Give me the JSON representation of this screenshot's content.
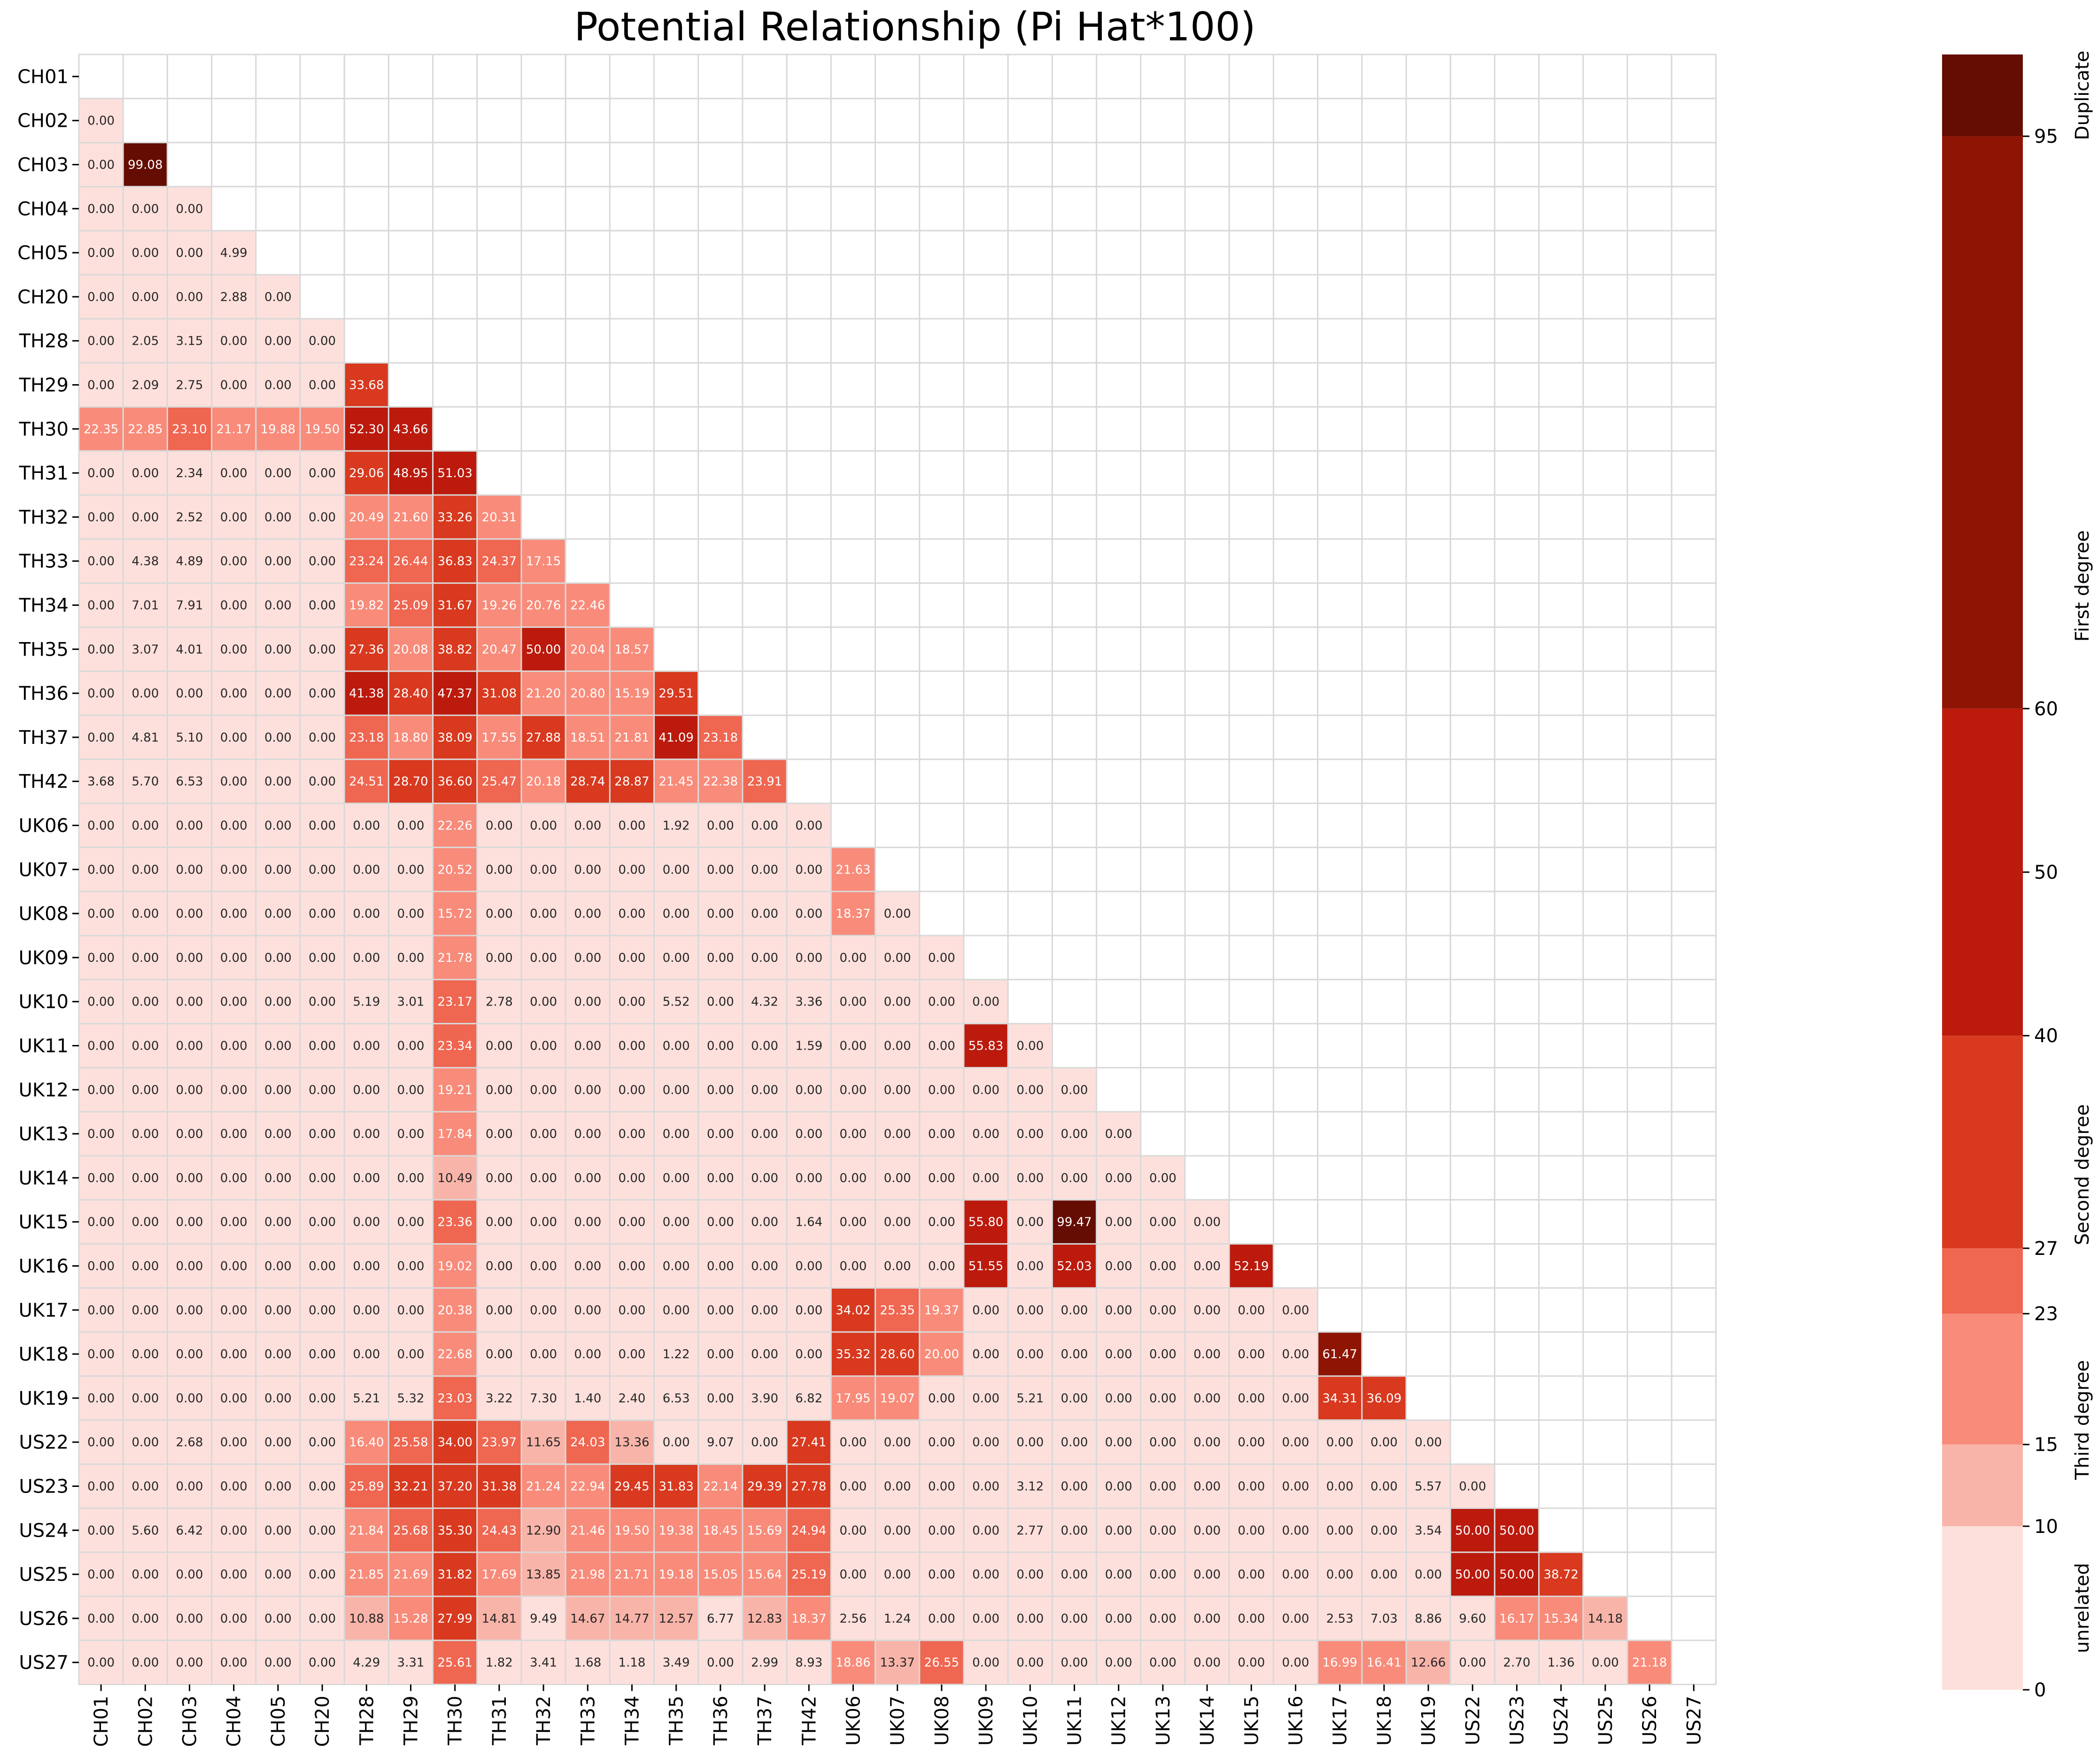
{
  "chart_data": {
    "type": "heatmap",
    "title": "Potential Relationship (Pi Hat*100)",
    "xlabel": "",
    "ylabel": "",
    "samples": [
      "CH01",
      "CH02",
      "CH03",
      "CH04",
      "CH05",
      "CH20",
      "TH28",
      "TH29",
      "TH30",
      "TH31",
      "TH32",
      "TH33",
      "TH34",
      "TH35",
      "TH36",
      "TH37",
      "TH42",
      "UK06",
      "UK07",
      "UK08",
      "UK09",
      "UK10",
      "UK11",
      "UK12",
      "UK13",
      "UK14",
      "UK15",
      "UK16",
      "UK17",
      "UK18",
      "UK19",
      "US22",
      "US23",
      "US24",
      "US25",
      "US26",
      "US27"
    ],
    "lower_triangle": [
      [],
      [
        0.0
      ],
      [
        0.0,
        99.08
      ],
      [
        0.0,
        0.0,
        0.0
      ],
      [
        0.0,
        0.0,
        0.0,
        4.99
      ],
      [
        0.0,
        0.0,
        0.0,
        2.88,
        0.0
      ],
      [
        0.0,
        2.05,
        3.15,
        0.0,
        0.0,
        0.0
      ],
      [
        0.0,
        2.09,
        2.75,
        0.0,
        0.0,
        0.0,
        33.68
      ],
      [
        22.35,
        22.85,
        23.1,
        21.17,
        19.88,
        19.5,
        52.3,
        43.66
      ],
      [
        0.0,
        0.0,
        2.34,
        0.0,
        0.0,
        0.0,
        29.06,
        48.95,
        51.03
      ],
      [
        0.0,
        0.0,
        2.52,
        0.0,
        0.0,
        0.0,
        20.49,
        21.6,
        33.26,
        20.31
      ],
      [
        0.0,
        4.38,
        4.89,
        0.0,
        0.0,
        0.0,
        23.24,
        26.44,
        36.83,
        24.37,
        17.15
      ],
      [
        0.0,
        7.01,
        7.91,
        0.0,
        0.0,
        0.0,
        19.82,
        25.09,
        31.67,
        19.26,
        20.76,
        22.46
      ],
      [
        0.0,
        3.07,
        4.01,
        0.0,
        0.0,
        0.0,
        27.36,
        20.08,
        38.82,
        20.47,
        50.0,
        20.04,
        18.57
      ],
      [
        0.0,
        0.0,
        0.0,
        0.0,
        0.0,
        0.0,
        41.38,
        28.4,
        47.37,
        31.08,
        21.2,
        20.8,
        15.19,
        29.51
      ],
      [
        0.0,
        4.81,
        5.1,
        0.0,
        0.0,
        0.0,
        23.18,
        18.8,
        38.09,
        17.55,
        27.88,
        18.51,
        21.81,
        41.09,
        23.18
      ],
      [
        3.68,
        5.7,
        6.53,
        0.0,
        0.0,
        0.0,
        24.51,
        28.7,
        36.6,
        25.47,
        20.18,
        28.74,
        28.87,
        21.45,
        22.38,
        23.91
      ],
      [
        0.0,
        0.0,
        0.0,
        0.0,
        0.0,
        0.0,
        0.0,
        0.0,
        22.26,
        0.0,
        0.0,
        0.0,
        0.0,
        1.92,
        0.0,
        0.0,
        0.0
      ],
      [
        0.0,
        0.0,
        0.0,
        0.0,
        0.0,
        0.0,
        0.0,
        0.0,
        20.52,
        0.0,
        0.0,
        0.0,
        0.0,
        0.0,
        0.0,
        0.0,
        0.0,
        21.63
      ],
      [
        0.0,
        0.0,
        0.0,
        0.0,
        0.0,
        0.0,
        0.0,
        0.0,
        15.72,
        0.0,
        0.0,
        0.0,
        0.0,
        0.0,
        0.0,
        0.0,
        0.0,
        18.37,
        0.0
      ],
      [
        0.0,
        0.0,
        0.0,
        0.0,
        0.0,
        0.0,
        0.0,
        0.0,
        21.78,
        0.0,
        0.0,
        0.0,
        0.0,
        0.0,
        0.0,
        0.0,
        0.0,
        0.0,
        0.0,
        0.0
      ],
      [
        0.0,
        0.0,
        0.0,
        0.0,
        0.0,
        0.0,
        5.19,
        3.01,
        23.17,
        2.78,
        0.0,
        0.0,
        0.0,
        5.52,
        0.0,
        4.32,
        3.36,
        0.0,
        0.0,
        0.0,
        0.0
      ],
      [
        0.0,
        0.0,
        0.0,
        0.0,
        0.0,
        0.0,
        0.0,
        0.0,
        23.34,
        0.0,
        0.0,
        0.0,
        0.0,
        0.0,
        0.0,
        0.0,
        1.59,
        0.0,
        0.0,
        0.0,
        55.83,
        0.0
      ],
      [
        0.0,
        0.0,
        0.0,
        0.0,
        0.0,
        0.0,
        0.0,
        0.0,
        19.21,
        0.0,
        0.0,
        0.0,
        0.0,
        0.0,
        0.0,
        0.0,
        0.0,
        0.0,
        0.0,
        0.0,
        0.0,
        0.0,
        0.0
      ],
      [
        0.0,
        0.0,
        0.0,
        0.0,
        0.0,
        0.0,
        0.0,
        0.0,
        17.84,
        0.0,
        0.0,
        0.0,
        0.0,
        0.0,
        0.0,
        0.0,
        0.0,
        0.0,
        0.0,
        0.0,
        0.0,
        0.0,
        0.0,
        0.0
      ],
      [
        0.0,
        0.0,
        0.0,
        0.0,
        0.0,
        0.0,
        0.0,
        0.0,
        10.49,
        0.0,
        0.0,
        0.0,
        0.0,
        0.0,
        0.0,
        0.0,
        0.0,
        0.0,
        0.0,
        0.0,
        0.0,
        0.0,
        0.0,
        0.0,
        0.0
      ],
      [
        0.0,
        0.0,
        0.0,
        0.0,
        0.0,
        0.0,
        0.0,
        0.0,
        23.36,
        0.0,
        0.0,
        0.0,
        0.0,
        0.0,
        0.0,
        0.0,
        1.64,
        0.0,
        0.0,
        0.0,
        55.8,
        0.0,
        99.47,
        0.0,
        0.0,
        0.0
      ],
      [
        0.0,
        0.0,
        0.0,
        0.0,
        0.0,
        0.0,
        0.0,
        0.0,
        19.02,
        0.0,
        0.0,
        0.0,
        0.0,
        0.0,
        0.0,
        0.0,
        0.0,
        0.0,
        0.0,
        0.0,
        51.55,
        0.0,
        52.03,
        0.0,
        0.0,
        0.0,
        52.19
      ],
      [
        0.0,
        0.0,
        0.0,
        0.0,
        0.0,
        0.0,
        0.0,
        0.0,
        20.38,
        0.0,
        0.0,
        0.0,
        0.0,
        0.0,
        0.0,
        0.0,
        0.0,
        34.02,
        25.35,
        19.37,
        0.0,
        0.0,
        0.0,
        0.0,
        0.0,
        0.0,
        0.0,
        0.0
      ],
      [
        0.0,
        0.0,
        0.0,
        0.0,
        0.0,
        0.0,
        0.0,
        0.0,
        22.68,
        0.0,
        0.0,
        0.0,
        0.0,
        1.22,
        0.0,
        0.0,
        0.0,
        35.32,
        28.6,
        20.0,
        0.0,
        0.0,
        0.0,
        0.0,
        0.0,
        0.0,
        0.0,
        0.0,
        61.47
      ],
      [
        0.0,
        0.0,
        0.0,
        0.0,
        0.0,
        0.0,
        5.21,
        5.32,
        23.03,
        3.22,
        7.3,
        1.4,
        2.4,
        6.53,
        0.0,
        3.9,
        6.82,
        17.95,
        19.07,
        0.0,
        0.0,
        5.21,
        0.0,
        0.0,
        0.0,
        0.0,
        0.0,
        0.0,
        34.31,
        36.09
      ],
      [
        0.0,
        0.0,
        2.68,
        0.0,
        0.0,
        0.0,
        16.4,
        25.58,
        34.0,
        23.97,
        11.65,
        24.03,
        13.36,
        0.0,
        9.07,
        0.0,
        27.41,
        0.0,
        0.0,
        0.0,
        0.0,
        0.0,
        0.0,
        0.0,
        0.0,
        0.0,
        0.0,
        0.0,
        0.0,
        0.0,
        0.0
      ],
      [
        0.0,
        0.0,
        0.0,
        0.0,
        0.0,
        0.0,
        25.89,
        32.21,
        37.2,
        31.38,
        21.24,
        22.94,
        29.45,
        31.83,
        22.14,
        29.39,
        27.78,
        0.0,
        0.0,
        0.0,
        0.0,
        3.12,
        0.0,
        0.0,
        0.0,
        0.0,
        0.0,
        0.0,
        0.0,
        0.0,
        5.57,
        0.0
      ],
      [
        0.0,
        5.6,
        6.42,
        0.0,
        0.0,
        0.0,
        21.84,
        25.68,
        35.3,
        24.43,
        12.9,
        21.46,
        19.5,
        19.38,
        18.45,
        15.69,
        24.94,
        0.0,
        0.0,
        0.0,
        0.0,
        2.77,
        0.0,
        0.0,
        0.0,
        0.0,
        0.0,
        0.0,
        0.0,
        0.0,
        3.54,
        50.0,
        50.0
      ],
      [
        0.0,
        0.0,
        0.0,
        0.0,
        0.0,
        0.0,
        21.85,
        21.69,
        31.82,
        17.69,
        13.85,
        21.98,
        21.71,
        19.18,
        15.05,
        15.64,
        25.19,
        0.0,
        0.0,
        0.0,
        0.0,
        0.0,
        0.0,
        0.0,
        0.0,
        0.0,
        0.0,
        0.0,
        0.0,
        0.0,
        0.0,
        50.0,
        50.0,
        38.72
      ],
      [
        0.0,
        0.0,
        0.0,
        0.0,
        0.0,
        0.0,
        10.88,
        15.28,
        27.99,
        14.81,
        9.49,
        14.67,
        14.77,
        12.57,
        6.77,
        12.83,
        18.37,
        2.56,
        1.24,
        0.0,
        0.0,
        0.0,
        0.0,
        0.0,
        0.0,
        0.0,
        0.0,
        0.0,
        2.53,
        7.03,
        8.86,
        9.6,
        16.17,
        15.34,
        14.18
      ],
      [
        0.0,
        0.0,
        0.0,
        0.0,
        0.0,
        0.0,
        4.29,
        3.31,
        25.61,
        1.82,
        3.41,
        1.68,
        1.18,
        3.49,
        0.0,
        2.99,
        8.93,
        18.86,
        13.37,
        26.55,
        0.0,
        0.0,
        0.0,
        0.0,
        0.0,
        0.0,
        0.0,
        0.0,
        16.99,
        16.41,
        12.66,
        0.0,
        2.7,
        1.36,
        0.0,
        21.18
      ]
    ],
    "value_format": "2 decimals",
    "colorbar": {
      "range": [
        0,
        100
      ],
      "ticks": [
        0,
        10,
        15,
        23,
        27,
        40,
        50,
        60,
        95
      ],
      "bins": [
        {
          "from": 0,
          "to": 10,
          "color": "#fde0dc"
        },
        {
          "from": 10,
          "to": 15,
          "color": "#f9b4a9"
        },
        {
          "from": 15,
          "to": 23,
          "color": "#f88b7a"
        },
        {
          "from": 23,
          "to": 27,
          "color": "#ef6651"
        },
        {
          "from": 27,
          "to": 40,
          "color": "#d8391f"
        },
        {
          "from": 40,
          "to": 60,
          "color": "#bb1a0d"
        },
        {
          "from": 60,
          "to": 95,
          "color": "#8e1404"
        },
        {
          "from": 95,
          "to": 100,
          "color": "#650d02"
        }
      ],
      "category_labels": [
        {
          "label": "unrelated",
          "from": 0,
          "to": 10
        },
        {
          "label": "Third degree",
          "from": 10,
          "to": 23
        },
        {
          "label": "Second degree",
          "from": 23,
          "to": 40
        },
        {
          "label": "First degree",
          "from": 40,
          "to": 95
        },
        {
          "label": "Duplicate",
          "from": 95,
          "to": 100
        }
      ]
    }
  }
}
